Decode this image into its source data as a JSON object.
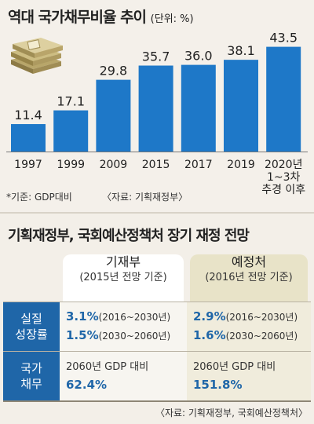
{
  "chart_data": {
    "type": "bar",
    "title": "역대 국가채무비율 추이",
    "unit": "(단위: %)",
    "categories": [
      "1997",
      "1999",
      "2009",
      "2015",
      "2017",
      "2019",
      "2020년 1~3차 추경 이후"
    ],
    "category_lines": [
      [
        "1997"
      ],
      [
        "1999"
      ],
      [
        "2009"
      ],
      [
        "2015"
      ],
      [
        "2017"
      ],
      [
        "2019"
      ],
      [
        "2020년",
        "1~3차",
        "추경 이후"
      ]
    ],
    "values": [
      11.4,
      17.1,
      29.8,
      35.7,
      36.0,
      38.1,
      43.5
    ],
    "value_labels": [
      "11.4",
      "17.1",
      "29.8",
      "35.7",
      "36.0",
      "38.1",
      "43.5"
    ],
    "ylim": [
      0,
      45
    ],
    "grid": false,
    "bar_color": "#1e78c8",
    "note": "*기준: GDP대비",
    "source": "〈자료: 기획재정부〉"
  },
  "comparison": {
    "title": "기획재정부, 국회예산정책처 장기 재정 전망",
    "columns": [
      {
        "name": "기재부",
        "sub": "(2015년 전망 기준)"
      },
      {
        "name": "예정처",
        "sub": "(2016년 전망 기준)"
      }
    ],
    "rows": [
      {
        "label_lines": [
          "실질",
          "성장률"
        ],
        "cells": [
          [
            {
              "pct": "3.1%",
              "range": "(2016~2030년)"
            },
            {
              "pct": "1.5%",
              "range": "(2030~2060년)"
            }
          ],
          [
            {
              "pct": "2.9%",
              "range": "(2016~2030년)"
            },
            {
              "pct": "1.6%",
              "range": "(2030~2060년)"
            }
          ]
        ]
      },
      {
        "label_lines": [
          "국가",
          "채무"
        ],
        "cells": [
          {
            "label": "2060년 GDP 대비",
            "value": "62.4%"
          },
          {
            "label": "2060년 GDP 대비",
            "value": "151.8%"
          }
        ]
      }
    ],
    "source": "〈자료: 기획재정부, 국회예산정책처〉"
  },
  "colors": {
    "accent_blue": "#1e78c8",
    "row_head": "#1f66a8",
    "highlight": "#e8e3c8"
  }
}
